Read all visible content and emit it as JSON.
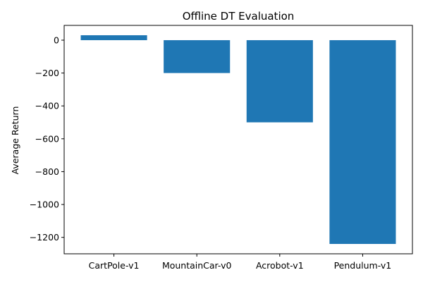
{
  "chart_data": {
    "type": "bar",
    "title": "Offline DT Evaluation",
    "xlabel": "",
    "ylabel": "Average Return",
    "categories": [
      "CartPole-v1",
      "MountainCar-v0",
      "Acrobot-v1",
      "Pendulum-v1"
    ],
    "values": [
      30,
      -200,
      -500,
      -1240
    ],
    "ylim": [
      -1300,
      90
    ],
    "yticks": [
      0,
      -200,
      -400,
      -600,
      -800,
      -1000,
      -1200
    ],
    "ytick_labels": [
      "0",
      "−200",
      "−400",
      "−600",
      "−800",
      "−1000",
      "−1200"
    ],
    "bar_color": "#1f77b4",
    "grid": false,
    "legend": "none"
  }
}
